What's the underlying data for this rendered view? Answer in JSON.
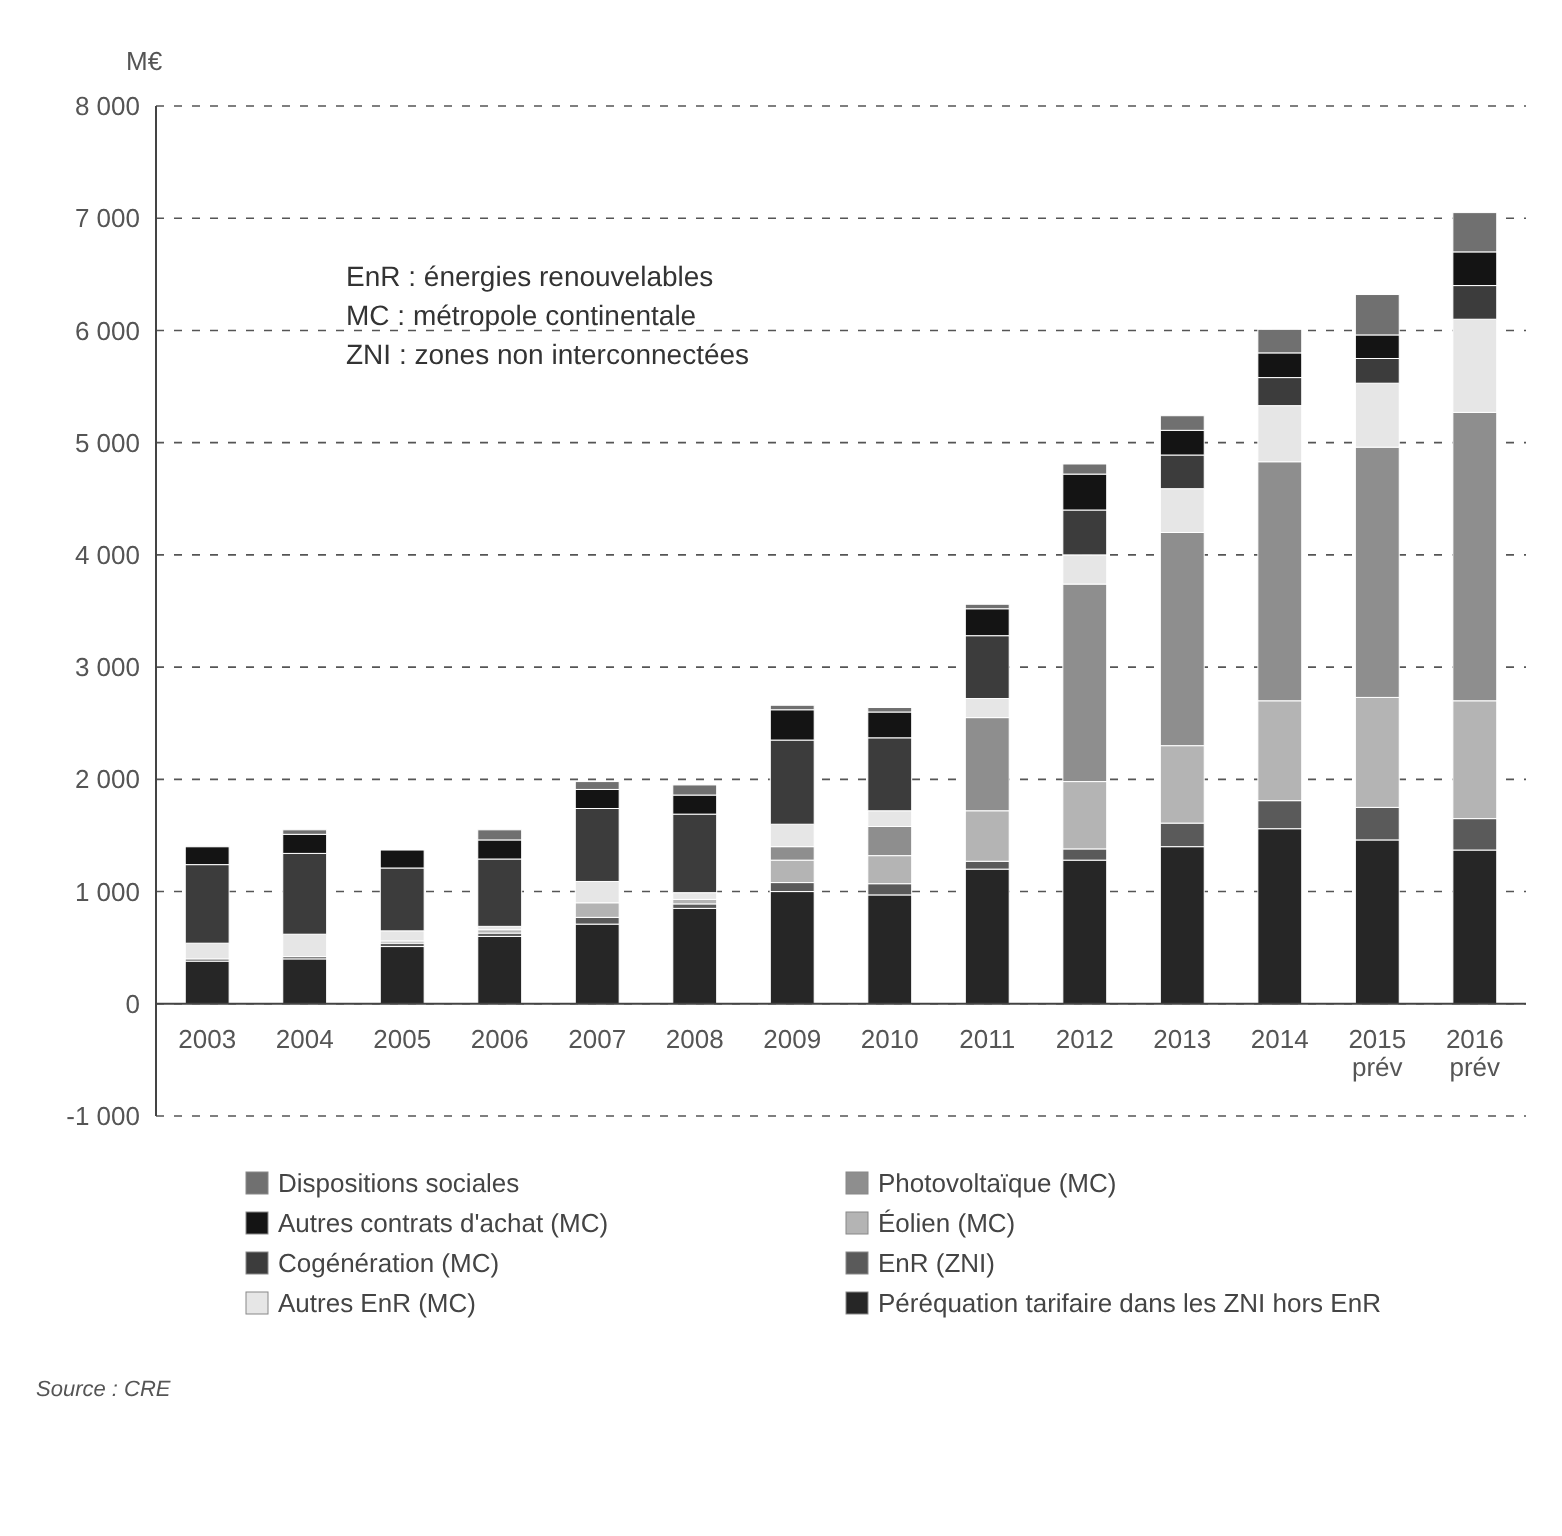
{
  "chart_data": {
    "type": "bar",
    "stacked": true,
    "ylabel": "M€",
    "categories": [
      "2003",
      "2004",
      "2005",
      "2006",
      "2007",
      "2008",
      "2009",
      "2010",
      "2011",
      "2012",
      "2013",
      "2014",
      "2015 prév",
      "2016 prév"
    ],
    "series": [
      {
        "name": "Péréquation tarifaire dans les ZNI hors EnR",
        "color": "#262626",
        "values": [
          380,
          400,
          510,
          600,
          710,
          850,
          1000,
          970,
          1200,
          1280,
          1400,
          1560,
          1460,
          1370
        ]
      },
      {
        "name": "EnR (ZNI)",
        "color": "#5a5a5a",
        "values": [
          20,
          20,
          30,
          30,
          60,
          40,
          80,
          100,
          70,
          100,
          210,
          250,
          290,
          280
        ]
      },
      {
        "name": "Éolien (MC)",
        "color": "#b4b4b4",
        "values": [
          0,
          0,
          20,
          30,
          130,
          40,
          200,
          250,
          450,
          600,
          690,
          890,
          980,
          1050
        ]
      },
      {
        "name": "Photovoltaïque (MC)",
        "color": "#8e8e8e",
        "values": [
          0,
          0,
          0,
          0,
          0,
          0,
          120,
          260,
          830,
          1760,
          1900,
          2130,
          2230,
          2570
        ]
      },
      {
        "name": "Autres EnR (MC)",
        "color": "#e6e6e6",
        "values": [
          140,
          200,
          90,
          30,
          190,
          60,
          200,
          140,
          170,
          260,
          390,
          500,
          570,
          830
        ]
      },
      {
        "name": "Cogénération (MC)",
        "color": "#3c3c3c",
        "values": [
          700,
          720,
          560,
          600,
          650,
          700,
          750,
          650,
          560,
          400,
          300,
          250,
          220,
          300
        ]
      },
      {
        "name": "Autres contrats d'achat (MC)",
        "color": "#141414",
        "values": [
          160,
          170,
          160,
          170,
          170,
          170,
          270,
          230,
          240,
          320,
          220,
          220,
          210,
          300
        ]
      },
      {
        "name": "Dispositions sociales",
        "color": "#707070",
        "values": [
          10,
          40,
          0,
          90,
          70,
          90,
          40,
          40,
          40,
          90,
          130,
          210,
          360,
          350
        ]
      }
    ],
    "ylim": [
      -1000,
      8000
    ],
    "yticks": [
      {
        "value": -1000,
        "label": "-1 000"
      },
      0,
      {
        "value": 1000,
        "label": "1 000"
      },
      {
        "value": 2000,
        "label": "2 000"
      },
      {
        "value": 3000,
        "label": "3 000"
      },
      {
        "value": 4000,
        "label": "4 000"
      },
      {
        "value": 5000,
        "label": "5 000"
      },
      {
        "value": 6000,
        "label": "6 000"
      },
      {
        "value": 7000,
        "label": "7 000"
      },
      {
        "value": 8000,
        "label": "8 000"
      }
    ],
    "grid": "y",
    "legend": "bottom",
    "annotations": [
      "EnR : énergies renouvelables",
      "MC : métropole continentale",
      "ZNI : zones non interconnectées",
      "Source : CRE"
    ]
  }
}
